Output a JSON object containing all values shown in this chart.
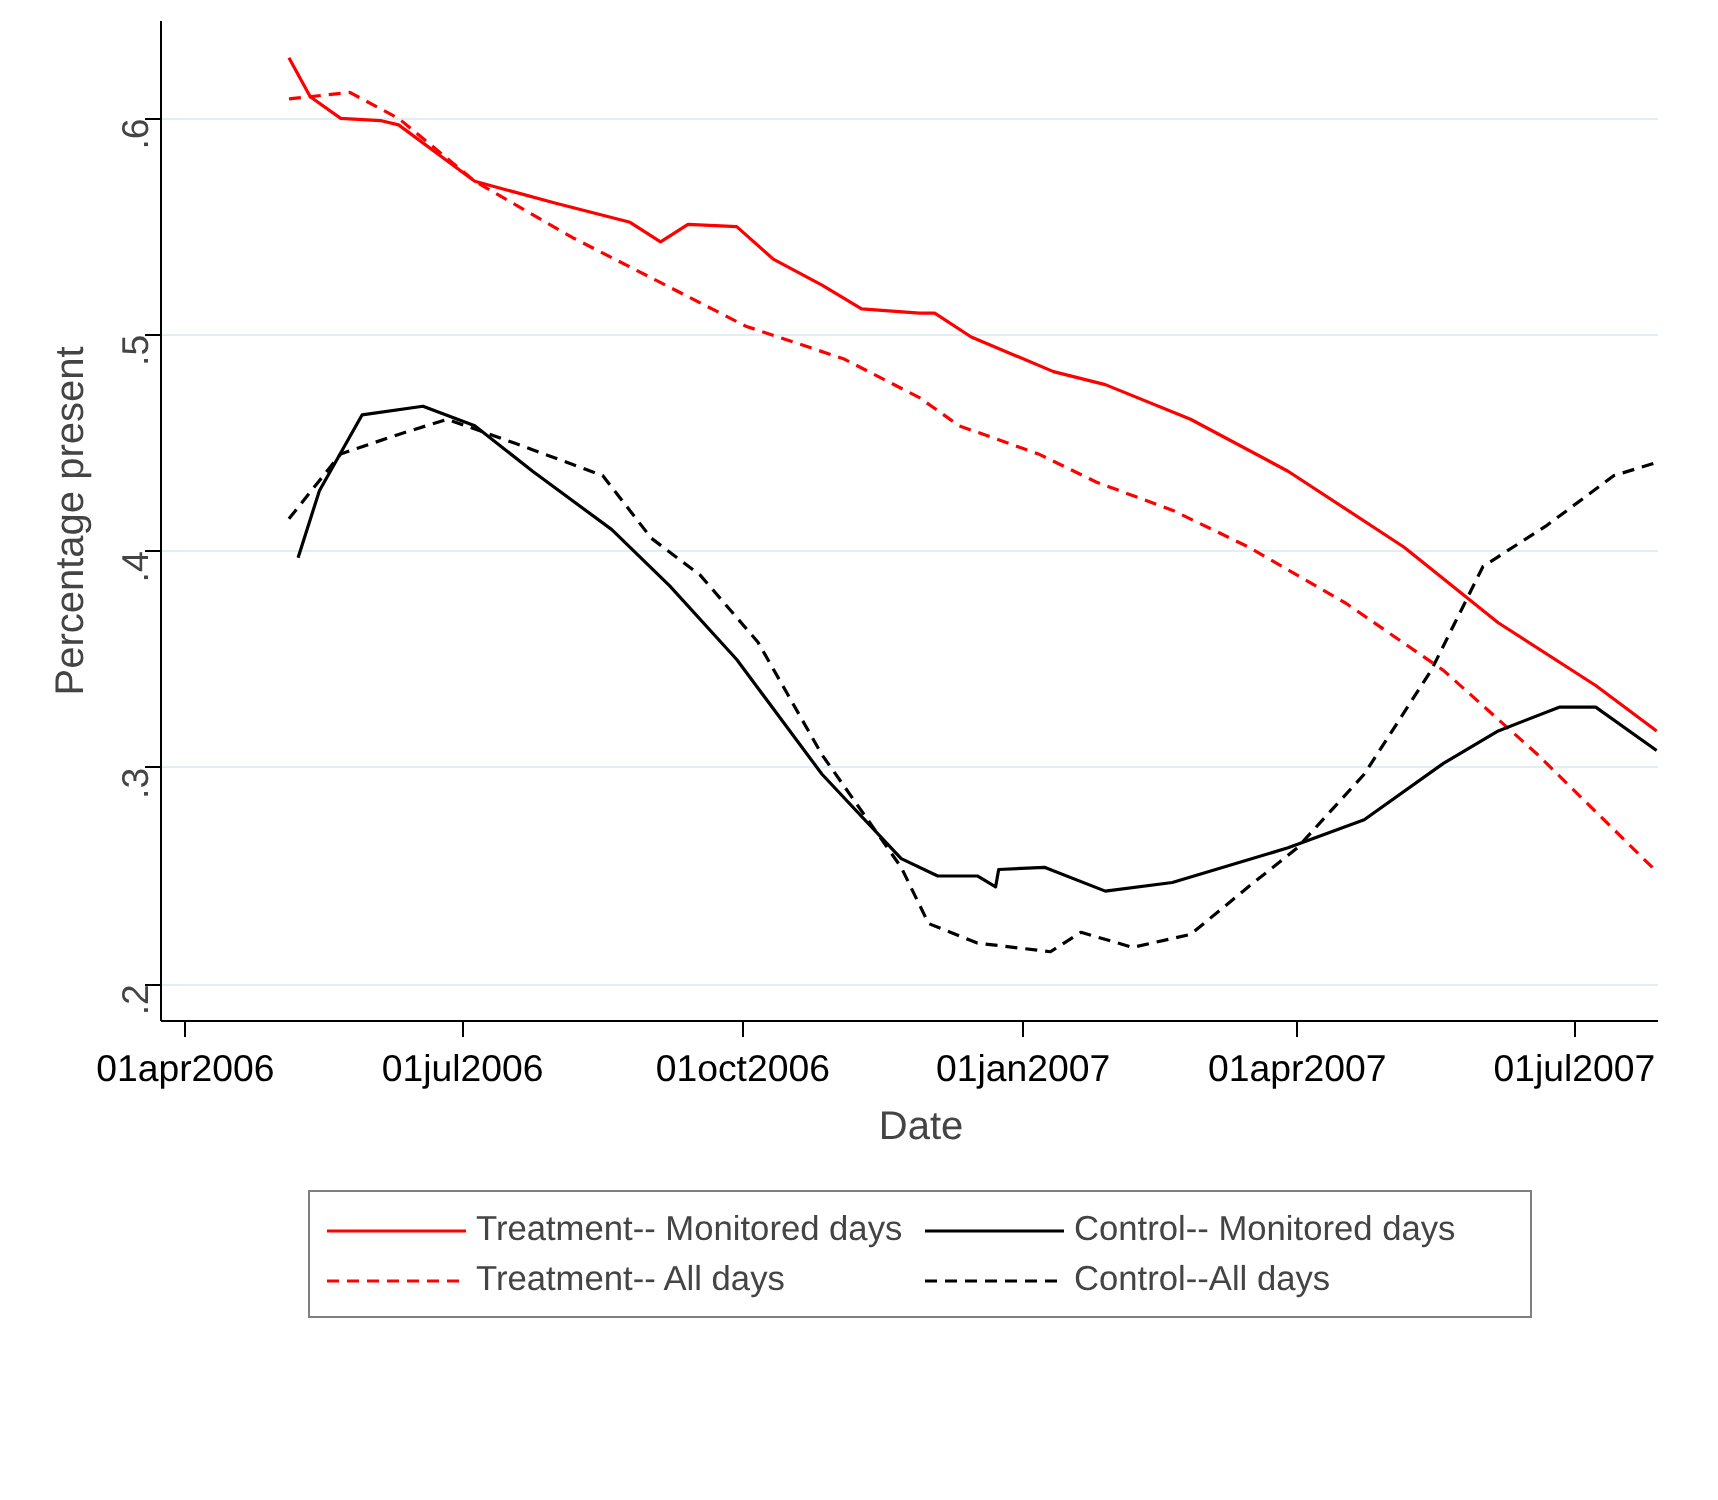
{
  "chart_data": {
    "type": "line",
    "xlabel": "Date",
    "ylabel": "Percentage present",
    "xlim": [
      "2006-03-24",
      "2007-08-05"
    ],
    "ylim": [
      0.183,
      0.645
    ],
    "xticks": [
      {
        "value": "2006-04-01",
        "label": "01apr2006"
      },
      {
        "value": "2006-07-01",
        "label": "01jul2006"
      },
      {
        "value": "2006-10-01",
        "label": "01oct2006"
      },
      {
        "value": "2007-01-01",
        "label": "01jan2007"
      },
      {
        "value": "2007-04-01",
        "label": "01apr2007"
      },
      {
        "value": "2007-07-01",
        "label": "01jul2007"
      }
    ],
    "yticks": [
      {
        "value": 0.2,
        "label": ".2"
      },
      {
        "value": 0.3,
        "label": ".3"
      },
      {
        "value": 0.4,
        "label": ".4"
      },
      {
        "value": 0.5,
        "label": ".5"
      },
      {
        "value": 0.6,
        "label": ".6"
      }
    ],
    "grid": "y",
    "legend": "bottom",
    "marker": "none",
    "series": [
      {
        "name": "Treatment-- Monitored days",
        "color": "#ff0000",
        "line_style": "solid",
        "x": [
          "2006-05-05",
          "2006-05-12",
          "2006-05-22",
          "2006-06-04",
          "2006-06-10",
          "2006-07-05",
          "2006-07-31",
          "2006-08-25",
          "2006-09-04",
          "2006-09-13",
          "2006-09-29",
          "2006-10-11",
          "2006-10-27",
          "2006-11-09",
          "2006-11-28",
          "2006-12-03",
          "2006-12-15",
          "2007-01-11",
          "2007-01-28",
          "2007-02-25",
          "2007-03-29",
          "2007-05-06",
          "2007-06-06",
          "2007-07-08",
          "2007-07-28"
        ],
        "values": [
          0.628,
          0.61,
          0.6,
          0.599,
          0.597,
          0.571,
          0.561,
          0.552,
          0.543,
          0.551,
          0.55,
          0.535,
          0.523,
          0.512,
          0.51,
          0.51,
          0.499,
          0.483,
          0.477,
          0.461,
          0.437,
          0.402,
          0.367,
          0.338,
          0.317
        ]
      },
      {
        "name": "Treatment-- All days",
        "color": "#ff0000",
        "line_style": "dashed",
        "x": [
          "2006-05-05",
          "2006-05-25",
          "2006-06-10",
          "2006-07-05",
          "2006-08-06",
          "2006-09-07",
          "2006-10-02",
          "2006-11-03",
          "2006-11-28",
          "2006-12-11",
          "2007-01-06",
          "2007-01-25",
          "2007-02-19",
          "2007-03-16",
          "2007-04-17",
          "2007-05-19",
          "2007-06-19",
          "2007-07-28"
        ],
        "values": [
          0.609,
          0.612,
          0.6,
          0.571,
          0.545,
          0.522,
          0.504,
          0.489,
          0.471,
          0.458,
          0.445,
          0.432,
          0.419,
          0.402,
          0.376,
          0.345,
          0.306,
          0.252
        ]
      },
      {
        "name": "Control-- Monitored days",
        "color": "#000000",
        "line_style": "solid",
        "x": [
          "2006-05-08",
          "2006-05-15",
          "2006-05-29",
          "2006-06-18",
          "2006-07-05",
          "2006-07-24",
          "2006-08-19",
          "2006-09-07",
          "2006-09-29",
          "2006-10-27",
          "2006-11-22",
          "2006-12-04",
          "2006-12-17",
          "2006-12-23",
          "2006-12-24",
          "2007-01-08",
          "2007-01-28",
          "2007-02-19",
          "2007-03-29",
          "2007-04-23",
          "2007-05-19",
          "2007-06-06",
          "2007-06-26",
          "2007-07-08",
          "2007-07-28"
        ],
        "values": [
          0.397,
          0.428,
          0.463,
          0.467,
          0.458,
          0.437,
          0.41,
          0.384,
          0.35,
          0.297,
          0.258,
          0.25,
          0.25,
          0.245,
          0.253,
          0.254,
          0.243,
          0.247,
          0.263,
          0.276,
          0.302,
          0.317,
          0.328,
          0.328,
          0.308
        ]
      },
      {
        "name": "Control--All days",
        "color": "#000000",
        "line_style": "dashed",
        "x": [
          "2006-05-05",
          "2006-05-22",
          "2006-06-10",
          "2006-06-26",
          "2006-07-18",
          "2006-08-16",
          "2006-09-01",
          "2006-09-17",
          "2006-10-06",
          "2006-10-27",
          "2006-11-22",
          "2006-12-01",
          "2006-12-17",
          "2007-01-10",
          "2007-01-20",
          "2007-02-06",
          "2007-02-25",
          "2007-03-16",
          "2007-04-01",
          "2007-04-23",
          "2007-05-15",
          "2007-06-01",
          "2007-06-22",
          "2007-07-14",
          "2007-07-28"
        ],
        "values": [
          0.415,
          0.445,
          0.454,
          0.461,
          0.45,
          0.435,
          0.406,
          0.389,
          0.358,
          0.306,
          0.254,
          0.228,
          0.219,
          0.215,
          0.224,
          0.217,
          0.223,
          0.245,
          0.263,
          0.297,
          0.345,
          0.393,
          0.412,
          0.435,
          0.441
        ]
      }
    ]
  }
}
